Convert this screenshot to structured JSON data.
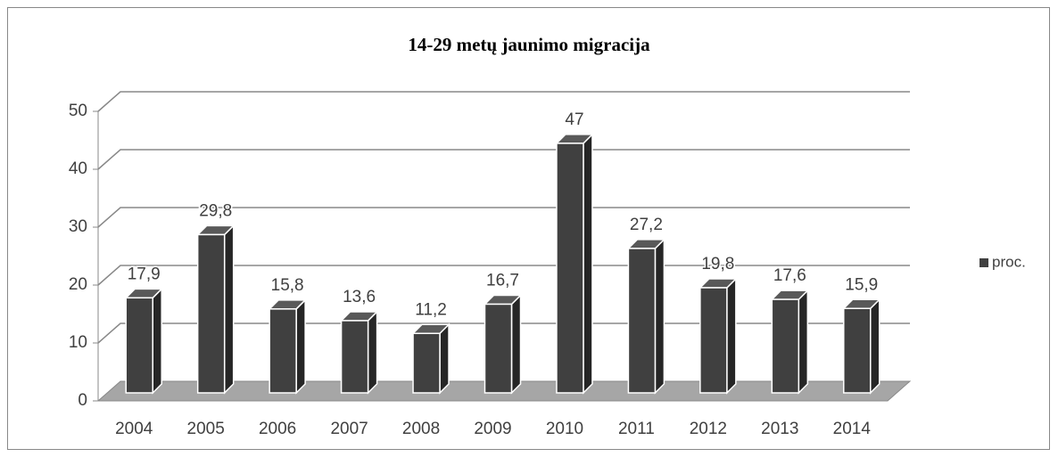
{
  "chart_data": {
    "type": "bar3d",
    "title": "14-29 metų jaunimo migracija",
    "categories": [
      "2004",
      "2005",
      "2006",
      "2007",
      "2008",
      "2009",
      "2010",
      "2011",
      "2012",
      "2013",
      "2014"
    ],
    "series": [
      {
        "name": "proc.",
        "color": "#404040",
        "values": [
          17.9,
          29.8,
          15.8,
          13.6,
          11.2,
          16.7,
          47,
          27.2,
          19.8,
          17.6,
          15.9
        ],
        "value_labels": [
          "17,9",
          "29,8",
          "15,8",
          "13,6",
          "11,2",
          "16,7",
          "47",
          "27,2",
          "19,8",
          "17,6",
          "15,9"
        ]
      }
    ],
    "ylim": [
      0,
      50
    ],
    "yticks": [
      0,
      10,
      20,
      30,
      40,
      50
    ],
    "grid": true,
    "legend": "right"
  }
}
